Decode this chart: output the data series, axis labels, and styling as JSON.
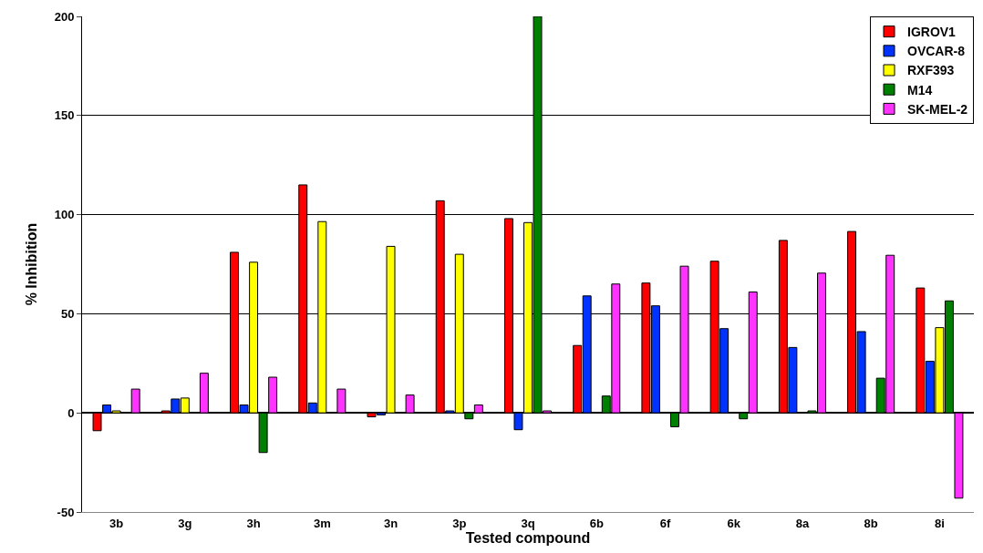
{
  "chart_data": {
    "type": "bar",
    "xlabel": "Tested compound",
    "ylabel": "% Inhibition",
    "categories": [
      "3b",
      "3g",
      "3h",
      "3m",
      "3n",
      "3p",
      "3q",
      "6b",
      "6f",
      "6k",
      "8a",
      "8b",
      "8i"
    ],
    "series": [
      {
        "name": "IGROV1",
        "color": "#ff0000",
        "values": [
          -9,
          1,
          81,
          115,
          -2,
          107,
          98,
          34,
          65.5,
          76.5,
          87,
          91.5,
          63
        ]
      },
      {
        "name": "OVCAR-8",
        "color": "#0033ff",
        "values": [
          4,
          7,
          4,
          5,
          -1,
          1,
          -8.5,
          59,
          54,
          42.5,
          33,
          41,
          26
        ]
      },
      {
        "name": "RXF393",
        "color": "#ffff00",
        "values": [
          1,
          7.5,
          76,
          96.5,
          84,
          80,
          96,
          null,
          null,
          null,
          null,
          null,
          43
        ]
      },
      {
        "name": "M14",
        "color": "#008000",
        "values": [
          null,
          null,
          -20,
          null,
          null,
          -3,
          200,
          8.5,
          -7,
          -3,
          1,
          17.5,
          56.5
        ]
      },
      {
        "name": "SK-MEL-2",
        "color": "#ff33ff",
        "values": [
          12,
          20,
          18,
          12,
          9,
          4,
          1,
          65,
          74,
          61,
          70.5,
          79.5,
          -43
        ]
      }
    ],
    "ylim": [
      -50,
      200
    ],
    "yticks": [
      -50,
      0,
      50,
      100,
      150,
      200
    ],
    "grid": "y",
    "legend": "top right"
  }
}
